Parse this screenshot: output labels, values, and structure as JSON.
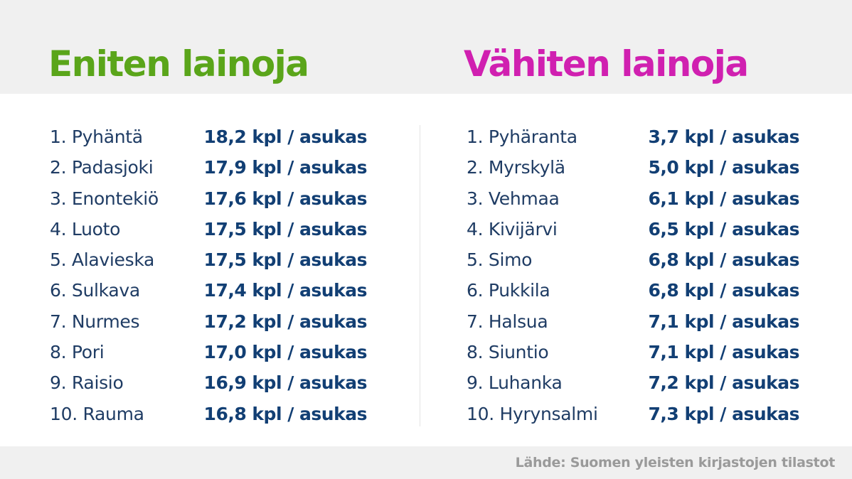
{
  "colors": {
    "left_title": "#5aa51a",
    "right_title": "#d020b0",
    "text": "#1f3c64",
    "value": "#123f74",
    "source": "#9a9a9a",
    "band": "#f0f0f0"
  },
  "left": {
    "title": "Eniten lainoja",
    "rows": [
      {
        "place": "1. Pyhäntä",
        "value": "18,2 kpl / asukas"
      },
      {
        "place": "2. Padasjoki",
        "value": "17,9 kpl / asukas"
      },
      {
        "place": "3. Enontekiö",
        "value": "17,6 kpl / asukas"
      },
      {
        "place": "4. Luoto",
        "value": "17,5 kpl / asukas"
      },
      {
        "place": "5. Alavieska",
        "value": "17,5 kpl / asukas"
      },
      {
        "place": "6. Sulkava",
        "value": "17,4 kpl / asukas"
      },
      {
        "place": "7. Nurmes",
        "value": "17,2 kpl / asukas"
      },
      {
        "place": "8. Pori",
        "value": "17,0 kpl / asukas"
      },
      {
        "place": "9. Raisio",
        "value": "16,9 kpl / asukas"
      },
      {
        "place": "10. Rauma",
        "value": "16,8 kpl / asukas"
      }
    ]
  },
  "right": {
    "title": "Vähiten lainoja",
    "rows": [
      {
        "place": "1. Pyhäranta",
        "value": "3,7 kpl / asukas"
      },
      {
        "place": "2. Myrskylä",
        "value": "5,0 kpl / asukas"
      },
      {
        "place": "3. Vehmaa",
        "value": "6,1 kpl / asukas"
      },
      {
        "place": "4. Kivijärvi",
        "value": "6,5 kpl / asukas"
      },
      {
        "place": "5. Simo",
        "value": "6,8 kpl / asukas"
      },
      {
        "place": "6. Pukkila",
        "value": "6,8 kpl / asukas"
      },
      {
        "place": "7. Halsua",
        "value": "7,1 kpl / asukas"
      },
      {
        "place": "8. Siuntio",
        "value": "7,1 kpl / asukas"
      },
      {
        "place": "9. Luhanka",
        "value": "7,2 kpl / asukas"
      },
      {
        "place": "10. Hyrynsalmi",
        "value": "7,3 kpl / asukas"
      }
    ]
  },
  "source": "Lähde: Suomen yleisten kirjastojen tilastot"
}
